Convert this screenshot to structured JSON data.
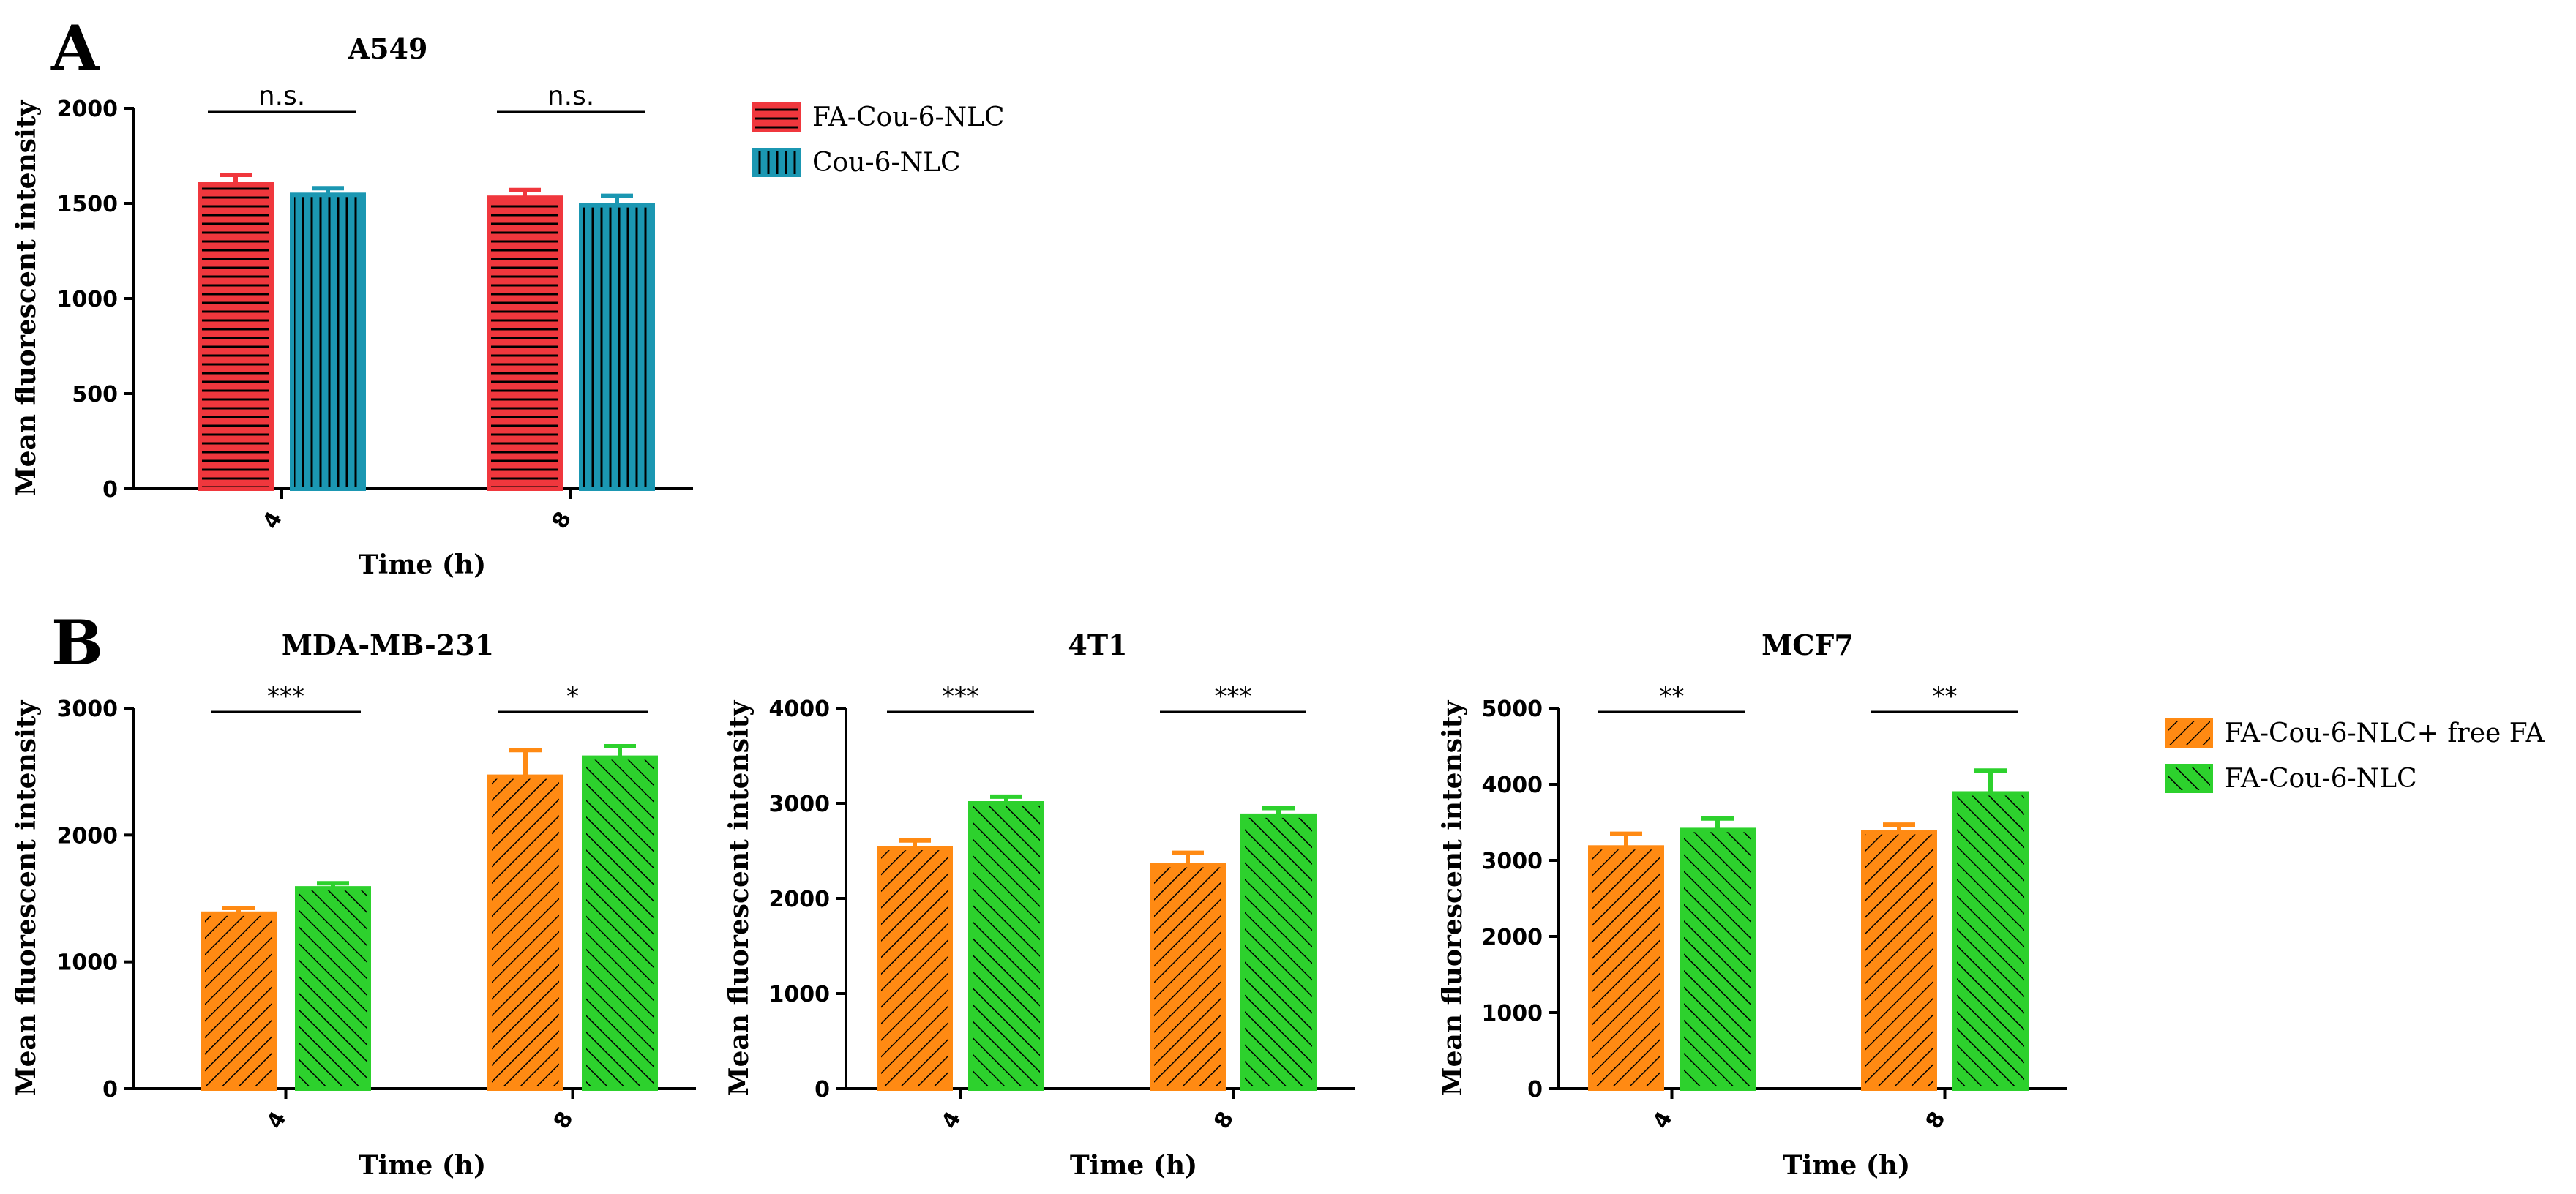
{
  "figure": {
    "panel_a_letter": "A",
    "panel_b_letter": "B"
  },
  "colors": {
    "red": "#F0373D",
    "teal": "#1B97B2",
    "orange": "#FF8A13",
    "green": "#2DD12D",
    "axis": "#000000"
  },
  "chart_data": [
    {
      "id": "a549",
      "type": "bar",
      "title": "A549",
      "xlabel": "Time (h)",
      "ylabel": "Mean fluorescent intensity",
      "categories": [
        "4",
        "8"
      ],
      "ylim": [
        0,
        2000
      ],
      "yticks": [
        0,
        500,
        1000,
        1500,
        2000
      ],
      "series": [
        {
          "name": "FA-Cou-6-NLC",
          "values": [
            1600,
            1530
          ],
          "errors": [
            50,
            40
          ],
          "color": "#F0373D",
          "pattern": "hstripe"
        },
        {
          "name": "Cou-6-NLC",
          "values": [
            1545,
            1490
          ],
          "errors": [
            35,
            50
          ],
          "color": "#1B97B2",
          "pattern": "vstripe"
        }
      ],
      "significance": [
        "n.s.",
        "n.s."
      ],
      "legend": "right"
    },
    {
      "id": "mda",
      "type": "bar",
      "title": "MDA-MB-231",
      "xlabel": "Time (h)",
      "ylabel": "Mean fluorescent intensity",
      "categories": [
        "4",
        "8"
      ],
      "ylim": [
        0,
        3000
      ],
      "yticks": [
        0,
        1000,
        2000,
        3000
      ],
      "series": [
        {
          "name": "FA-Cou-6-NLC+ free FA",
          "values": [
            1380,
            2460
          ],
          "errors": [
            45,
            210
          ],
          "color": "#FF8A13",
          "pattern": "fdiag"
        },
        {
          "name": "FA-Cou-6-NLC",
          "values": [
            1580,
            2610
          ],
          "errors": [
            40,
            90
          ],
          "color": "#2DD12D",
          "pattern": "bdiag"
        }
      ],
      "significance": [
        "***",
        "*"
      ]
    },
    {
      "id": "4t1",
      "type": "bar",
      "title": "4T1",
      "xlabel": "Time (h)",
      "ylabel": "Mean fluorescent intensity",
      "categories": [
        "4",
        "8"
      ],
      "ylim": [
        0,
        4000
      ],
      "yticks": [
        0,
        1000,
        2000,
        3000,
        4000
      ],
      "series": [
        {
          "name": "FA-Cou-6-NLC+ free FA",
          "values": [
            2530,
            2350
          ],
          "errors": [
            80,
            130
          ],
          "color": "#FF8A13",
          "pattern": "fdiag"
        },
        {
          "name": "FA-Cou-6-NLC",
          "values": [
            3000,
            2870
          ],
          "errors": [
            70,
            80
          ],
          "color": "#2DD12D",
          "pattern": "bdiag"
        }
      ],
      "significance": [
        "***",
        "***"
      ]
    },
    {
      "id": "mcf7",
      "type": "bar",
      "title": "MCF7",
      "xlabel": "Time (h)",
      "ylabel": "Mean fluorescent intensity",
      "categories": [
        "4",
        "8"
      ],
      "ylim": [
        0,
        5000
      ],
      "yticks": [
        0,
        1000,
        2000,
        3000,
        4000,
        5000
      ],
      "series": [
        {
          "name": "FA-Cou-6-NLC+ free FA",
          "values": [
            3170,
            3370
          ],
          "errors": [
            180,
            100
          ],
          "color": "#FF8A13",
          "pattern": "fdiag"
        },
        {
          "name": "FA-Cou-6-NLC",
          "values": [
            3400,
            3880
          ],
          "errors": [
            150,
            300
          ],
          "color": "#2DD12D",
          "pattern": "bdiag"
        }
      ],
      "significance": [
        "**",
        "**"
      ],
      "legend": "right"
    }
  ]
}
